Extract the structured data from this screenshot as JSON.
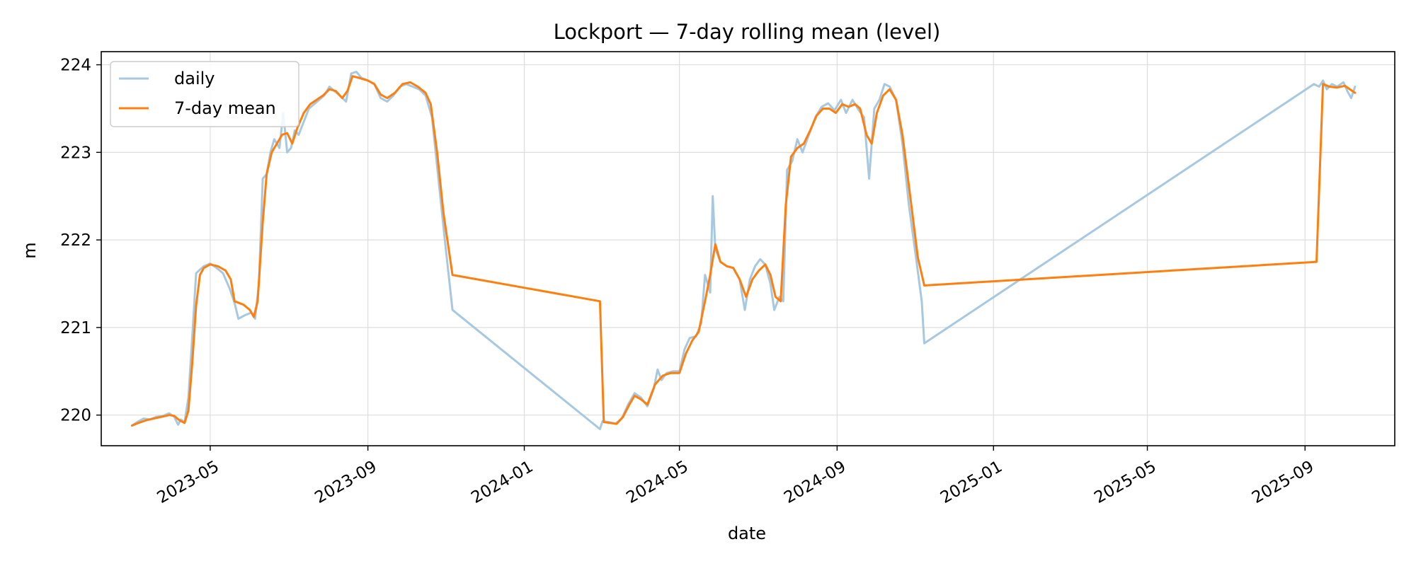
{
  "chart_data": {
    "type": "line",
    "title": "Lockport — 7-day rolling mean (level)",
    "xlabel": "date",
    "ylabel": "m",
    "xlim": [
      "2023-02-05",
      "2025-11-10"
    ],
    "ylim": [
      219.65,
      224.15
    ],
    "grid": true,
    "legend_position": "top-left",
    "x_ticks": [
      {
        "date": "2023-05-01",
        "label": "2023-05"
      },
      {
        "date": "2023-09-01",
        "label": "2023-09"
      },
      {
        "date": "2024-01-01",
        "label": "2024-01"
      },
      {
        "date": "2024-05-01",
        "label": "2024-05"
      },
      {
        "date": "2024-09-01",
        "label": "2024-09"
      },
      {
        "date": "2025-01-01",
        "label": "2025-01"
      },
      {
        "date": "2025-05-01",
        "label": "2025-05"
      },
      {
        "date": "2025-09-01",
        "label": "2025-09"
      }
    ],
    "y_ticks": [
      {
        "value": 220,
        "label": "220"
      },
      {
        "value": 221,
        "label": "221"
      },
      {
        "value": 222,
        "label": "222"
      },
      {
        "value": 223,
        "label": "223"
      },
      {
        "value": 224,
        "label": "224"
      }
    ],
    "series": [
      {
        "name": "daily",
        "color": "#a6c8e0",
        "points": [
          [
            "2023-03-01",
            219.88
          ],
          [
            "2023-03-05",
            219.92
          ],
          [
            "2023-03-10",
            219.96
          ],
          [
            "2023-03-15",
            219.95
          ],
          [
            "2023-03-20",
            219.98
          ],
          [
            "2023-03-25",
            219.99
          ],
          [
            "2023-03-30",
            220.02
          ],
          [
            "2023-04-03",
            219.98
          ],
          [
            "2023-04-06",
            219.89
          ],
          [
            "2023-04-08",
            219.95
          ],
          [
            "2023-04-11",
            219.92
          ],
          [
            "2023-04-14",
            220.2
          ],
          [
            "2023-04-17",
            220.9
          ],
          [
            "2023-04-20",
            221.62
          ],
          [
            "2023-04-23",
            221.66
          ],
          [
            "2023-04-26",
            221.7
          ],
          [
            "2023-05-01",
            221.73
          ],
          [
            "2023-05-06",
            221.68
          ],
          [
            "2023-05-11",
            221.62
          ],
          [
            "2023-05-16",
            221.45
          ],
          [
            "2023-05-20",
            221.28
          ],
          [
            "2023-05-23",
            221.1
          ],
          [
            "2023-05-28",
            221.14
          ],
          [
            "2023-06-02",
            221.17
          ],
          [
            "2023-06-05",
            221.1
          ],
          [
            "2023-06-08",
            221.5
          ],
          [
            "2023-06-11",
            222.7
          ],
          [
            "2023-06-14",
            222.75
          ],
          [
            "2023-06-17",
            223.0
          ],
          [
            "2023-06-20",
            223.15
          ],
          [
            "2023-06-24",
            223.05
          ],
          [
            "2023-06-27",
            223.45
          ],
          [
            "2023-06-30",
            223.0
          ],
          [
            "2023-07-03",
            223.05
          ],
          [
            "2023-07-06",
            223.25
          ],
          [
            "2023-07-09",
            223.2
          ],
          [
            "2023-07-13",
            223.35
          ],
          [
            "2023-07-17",
            223.5
          ],
          [
            "2023-07-21",
            223.55
          ],
          [
            "2023-07-25",
            223.6
          ],
          [
            "2023-07-29",
            223.65
          ],
          [
            "2023-08-02",
            223.75
          ],
          [
            "2023-08-06",
            223.7
          ],
          [
            "2023-08-10",
            223.65
          ],
          [
            "2023-08-15",
            223.58
          ],
          [
            "2023-08-19",
            223.9
          ],
          [
            "2023-08-23",
            223.92
          ],
          [
            "2023-08-27",
            223.85
          ],
          [
            "2023-09-01",
            223.82
          ],
          [
            "2023-09-06",
            223.78
          ],
          [
            "2023-09-11",
            223.62
          ],
          [
            "2023-09-16",
            223.58
          ],
          [
            "2023-09-21",
            223.65
          ],
          [
            "2023-09-26",
            223.75
          ],
          [
            "2023-10-01",
            223.78
          ],
          [
            "2023-10-06",
            223.75
          ],
          [
            "2023-10-11",
            223.72
          ],
          [
            "2023-10-16",
            223.65
          ],
          [
            "2023-10-21",
            223.4
          ],
          [
            "2023-10-26",
            222.7
          ],
          [
            "2023-10-31",
            222.0
          ],
          [
            "2023-11-06",
            221.2
          ],
          [
            "2024-02-29",
            219.84
          ],
          [
            "2024-03-02",
            219.93
          ],
          [
            "2024-03-07",
            219.92
          ],
          [
            "2024-03-12",
            219.9
          ],
          [
            "2024-03-17",
            219.96
          ],
          [
            "2024-03-22",
            220.12
          ],
          [
            "2024-03-27",
            220.25
          ],
          [
            "2024-04-01",
            220.2
          ],
          [
            "2024-04-06",
            220.1
          ],
          [
            "2024-04-11",
            220.3
          ],
          [
            "2024-04-14",
            220.52
          ],
          [
            "2024-04-17",
            220.4
          ],
          [
            "2024-04-21",
            220.48
          ],
          [
            "2024-04-26",
            220.5
          ],
          [
            "2024-05-01",
            220.5
          ],
          [
            "2024-05-05",
            220.75
          ],
          [
            "2024-05-09",
            220.88
          ],
          [
            "2024-05-14",
            220.9
          ],
          [
            "2024-05-18",
            221.05
          ],
          [
            "2024-05-21",
            221.6
          ],
          [
            "2024-05-25",
            221.4
          ],
          [
            "2024-05-27",
            222.5
          ],
          [
            "2024-05-29",
            221.9
          ],
          [
            "2024-06-02",
            221.75
          ],
          [
            "2024-06-07",
            221.7
          ],
          [
            "2024-06-12",
            221.68
          ],
          [
            "2024-06-17",
            221.55
          ],
          [
            "2024-06-21",
            221.2
          ],
          [
            "2024-06-25",
            221.55
          ],
          [
            "2024-06-29",
            221.7
          ],
          [
            "2024-07-03",
            221.78
          ],
          [
            "2024-07-07",
            221.72
          ],
          [
            "2024-07-11",
            221.5
          ],
          [
            "2024-07-14",
            221.2
          ],
          [
            "2024-07-18",
            221.35
          ],
          [
            "2024-07-21",
            221.3
          ],
          [
            "2024-07-24",
            222.8
          ],
          [
            "2024-07-28",
            222.9
          ],
          [
            "2024-08-01",
            223.15
          ],
          [
            "2024-08-05",
            223.0
          ],
          [
            "2024-08-10",
            223.2
          ],
          [
            "2024-08-15",
            223.4
          ],
          [
            "2024-08-20",
            223.52
          ],
          [
            "2024-08-25",
            223.56
          ],
          [
            "2024-08-30",
            223.48
          ],
          [
            "2024-09-04",
            223.6
          ],
          [
            "2024-09-08",
            223.45
          ],
          [
            "2024-09-13",
            223.6
          ],
          [
            "2024-09-18",
            223.48
          ],
          [
            "2024-09-22",
            223.4
          ],
          [
            "2024-09-26",
            222.7
          ],
          [
            "2024-09-30",
            223.5
          ],
          [
            "2024-10-04",
            223.6
          ],
          [
            "2024-10-08",
            223.78
          ],
          [
            "2024-10-12",
            223.75
          ],
          [
            "2024-10-17",
            223.6
          ],
          [
            "2024-10-22",
            223.1
          ],
          [
            "2024-10-27",
            222.4
          ],
          [
            "2024-11-02",
            221.75
          ],
          [
            "2024-11-06",
            221.3
          ],
          [
            "2024-11-08",
            220.82
          ],
          [
            "2025-09-08",
            223.78
          ],
          [
            "2025-09-12",
            223.75
          ],
          [
            "2025-09-15",
            223.82
          ],
          [
            "2025-09-18",
            223.72
          ],
          [
            "2025-09-22",
            223.78
          ],
          [
            "2025-09-26",
            223.75
          ],
          [
            "2025-10-01",
            223.8
          ],
          [
            "2025-10-04",
            223.7
          ],
          [
            "2025-10-07",
            223.62
          ],
          [
            "2025-10-10",
            223.75
          ]
        ]
      },
      {
        "name": "7-day mean",
        "color": "#ff7f0e",
        "points": [
          [
            "2023-03-01",
            219.88
          ],
          [
            "2023-03-06",
            219.91
          ],
          [
            "2023-03-12",
            219.94
          ],
          [
            "2023-03-18",
            219.96
          ],
          [
            "2023-03-24",
            219.98
          ],
          [
            "2023-03-30",
            220.0
          ],
          [
            "2023-04-03",
            219.99
          ],
          [
            "2023-04-07",
            219.94
          ],
          [
            "2023-04-11",
            219.91
          ],
          [
            "2023-04-14",
            220.05
          ],
          [
            "2023-04-17",
            220.6
          ],
          [
            "2023-04-20",
            221.25
          ],
          [
            "2023-04-23",
            221.6
          ],
          [
            "2023-04-26",
            221.68
          ],
          [
            "2023-05-01",
            221.72
          ],
          [
            "2023-05-07",
            221.7
          ],
          [
            "2023-05-13",
            221.65
          ],
          [
            "2023-05-17",
            221.55
          ],
          [
            "2023-05-20",
            221.3
          ],
          [
            "2023-05-27",
            221.26
          ],
          [
            "2023-06-01",
            221.2
          ],
          [
            "2023-06-04",
            221.12
          ],
          [
            "2023-06-07",
            221.3
          ],
          [
            "2023-06-11",
            222.2
          ],
          [
            "2023-06-14",
            222.75
          ],
          [
            "2023-06-18",
            223.0
          ],
          [
            "2023-06-22",
            223.1
          ],
          [
            "2023-06-26",
            223.2
          ],
          [
            "2023-06-30",
            223.22
          ],
          [
            "2023-07-04",
            223.1
          ],
          [
            "2023-07-08",
            223.28
          ],
          [
            "2023-07-13",
            223.45
          ],
          [
            "2023-07-18",
            223.55
          ],
          [
            "2023-07-23",
            223.6
          ],
          [
            "2023-07-28",
            223.65
          ],
          [
            "2023-08-02",
            223.72
          ],
          [
            "2023-08-07",
            223.7
          ],
          [
            "2023-08-12",
            223.62
          ],
          [
            "2023-08-16",
            223.7
          ],
          [
            "2023-08-20",
            223.87
          ],
          [
            "2023-08-25",
            223.85
          ],
          [
            "2023-09-01",
            223.82
          ],
          [
            "2023-09-06",
            223.78
          ],
          [
            "2023-09-11",
            223.66
          ],
          [
            "2023-09-16",
            223.62
          ],
          [
            "2023-09-22",
            223.68
          ],
          [
            "2023-09-28",
            223.78
          ],
          [
            "2023-10-04",
            223.8
          ],
          [
            "2023-10-10",
            223.75
          ],
          [
            "2023-10-16",
            223.68
          ],
          [
            "2023-10-20",
            223.55
          ],
          [
            "2023-10-25",
            223.0
          ],
          [
            "2023-10-30",
            222.3
          ],
          [
            "2023-11-06",
            221.6
          ],
          [
            "2024-02-29",
            221.3
          ],
          [
            "2024-03-03",
            219.92
          ],
          [
            "2024-03-08",
            219.91
          ],
          [
            "2024-03-13",
            219.9
          ],
          [
            "2024-03-18",
            219.98
          ],
          [
            "2024-03-23",
            220.12
          ],
          [
            "2024-03-27",
            220.22
          ],
          [
            "2024-04-01",
            220.18
          ],
          [
            "2024-04-06",
            220.12
          ],
          [
            "2024-04-12",
            220.35
          ],
          [
            "2024-04-18",
            220.45
          ],
          [
            "2024-04-24",
            220.48
          ],
          [
            "2024-05-01",
            220.48
          ],
          [
            "2024-05-06",
            220.7
          ],
          [
            "2024-05-11",
            220.85
          ],
          [
            "2024-05-16",
            220.95
          ],
          [
            "2024-05-21",
            221.3
          ],
          [
            "2024-05-25",
            221.6
          ],
          [
            "2024-05-29",
            221.95
          ],
          [
            "2024-06-02",
            221.75
          ],
          [
            "2024-06-07",
            221.7
          ],
          [
            "2024-06-12",
            221.68
          ],
          [
            "2024-06-17",
            221.55
          ],
          [
            "2024-06-22",
            221.35
          ],
          [
            "2024-06-27",
            221.55
          ],
          [
            "2024-07-02",
            221.65
          ],
          [
            "2024-07-07",
            221.72
          ],
          [
            "2024-07-11",
            221.6
          ],
          [
            "2024-07-15",
            221.35
          ],
          [
            "2024-07-19",
            221.3
          ],
          [
            "2024-07-23",
            222.4
          ],
          [
            "2024-07-27",
            222.95
          ],
          [
            "2024-08-01",
            223.05
          ],
          [
            "2024-08-06",
            223.1
          ],
          [
            "2024-08-11",
            223.25
          ],
          [
            "2024-08-16",
            223.42
          ],
          [
            "2024-08-21",
            223.5
          ],
          [
            "2024-08-26",
            223.5
          ],
          [
            "2024-08-31",
            223.45
          ],
          [
            "2024-09-05",
            223.55
          ],
          [
            "2024-09-10",
            223.52
          ],
          [
            "2024-09-15",
            223.55
          ],
          [
            "2024-09-19",
            223.5
          ],
          [
            "2024-09-24",
            223.2
          ],
          [
            "2024-09-28",
            223.1
          ],
          [
            "2024-10-02",
            223.45
          ],
          [
            "2024-10-07",
            223.65
          ],
          [
            "2024-10-12",
            223.72
          ],
          [
            "2024-10-17",
            223.6
          ],
          [
            "2024-10-22",
            223.2
          ],
          [
            "2024-10-28",
            222.5
          ],
          [
            "2024-11-03",
            221.8
          ],
          [
            "2024-11-08",
            221.48
          ],
          [
            "2025-09-10",
            221.75
          ],
          [
            "2025-09-15",
            223.78
          ],
          [
            "2025-09-20",
            223.75
          ],
          [
            "2025-09-26",
            223.74
          ],
          [
            "2025-10-02",
            223.76
          ],
          [
            "2025-10-06",
            223.72
          ],
          [
            "2025-10-10",
            223.68
          ]
        ]
      }
    ]
  }
}
